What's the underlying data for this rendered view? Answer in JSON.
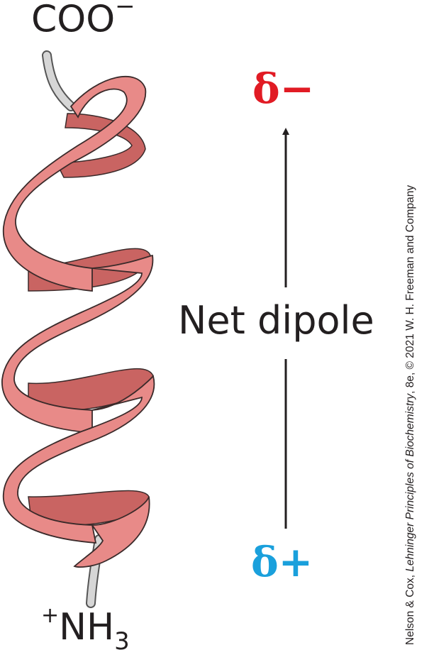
{
  "labels": {
    "c_terminus_base": "COO",
    "c_terminus_charge": "−",
    "n_terminus_charge": "+",
    "n_terminus_base": "NH",
    "n_terminus_subscript": "3",
    "dipole_label": "Net dipole",
    "delta_negative": "δ−",
    "delta_positive": "δ+"
  },
  "credit": {
    "authors": "Nelson & Cox, ",
    "book_title": "Lehninger Principles of Biochemistry",
    "edition": ", 8e, © 2021 W. H. Freeman and Company"
  },
  "colors": {
    "ribbon_front": "#e88a88",
    "ribbon_back": "#c96462",
    "backbone": "#d6d6d6",
    "delta_negative": "#e11b24",
    "delta_positive": "#1aa0dc",
    "text": "#231f20"
  }
}
